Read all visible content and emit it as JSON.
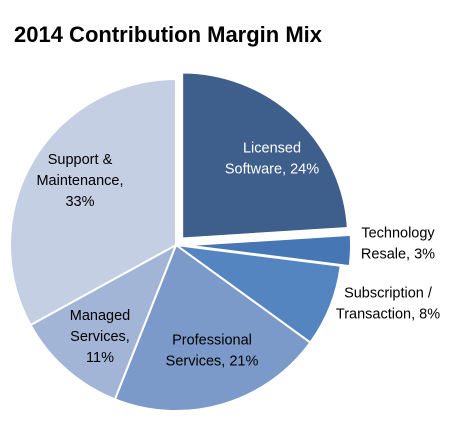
{
  "chart_data": {
    "type": "pie",
    "title": "2014 Contribution Margin Mix",
    "unit": "%",
    "slices": [
      {
        "lines": [
          "Licensed",
          "Software, 24%"
        ],
        "category": "Licensed Software",
        "value": 24,
        "color": "#3e5e8c",
        "text_color": "#ffffff",
        "exploded": true
      },
      {
        "lines": [
          "Technology",
          "Resale, 3%"
        ],
        "category": "Technology Resale",
        "value": 3,
        "color": "#4676b3",
        "text_color": "#000000",
        "exploded": true
      },
      {
        "lines": [
          "Subscription /",
          "Transaction, 8%"
        ],
        "category": "Subscription / Transaction",
        "value": 8,
        "color": "#5585c1",
        "text_color": "#000000",
        "exploded": false
      },
      {
        "lines": [
          "Professional",
          "Services, 21%"
        ],
        "category": "Professional Services",
        "value": 21,
        "color": "#7b9ac9",
        "text_color": "#000000",
        "exploded": false
      },
      {
        "lines": [
          "Managed",
          "Services,",
          "11%"
        ],
        "category": "Managed Services",
        "value": 11,
        "color": "#a3b5d6",
        "text_color": "#000000",
        "exploded": false
      },
      {
        "lines": [
          "Support &",
          "Maintenance,",
          "33%"
        ],
        "category": "Support & Maintenance",
        "value": 33,
        "color": "#c4cfe3",
        "text_color": "#000000",
        "exploded": false
      }
    ]
  }
}
